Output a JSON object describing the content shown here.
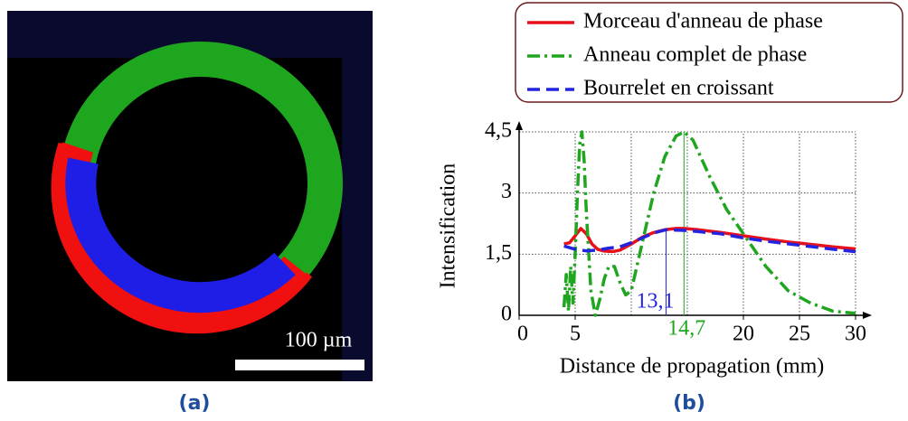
{
  "image": {
    "scale_label": "100 µm",
    "caption": "(a)"
  },
  "chart_data": {
    "type": "line",
    "caption": "(b)",
    "x_label": "Distance de propagation (mm)",
    "y_label": "Intensification",
    "xlim": [
      0,
      30
    ],
    "ylim": [
      0,
      4.5
    ],
    "xticks": [
      0,
      5,
      20,
      25,
      30
    ],
    "xgrid": [
      5,
      10,
      15,
      20,
      25,
      30
    ],
    "yticks": [
      0,
      {
        "value": 1.5,
        "label": "1,5"
      },
      3,
      {
        "value": 4.5,
        "label": "4,5"
      }
    ],
    "grid": true,
    "legend": "top-right",
    "series": [
      {
        "name": "Morceau d'anneau de phase",
        "color": "#e8101a",
        "dash": "solid",
        "x": [
          4,
          4.5,
          5,
          5.5,
          6,
          6.5,
          7,
          7.5,
          8,
          8.5,
          9,
          10,
          11,
          12,
          13,
          14,
          14.7,
          16,
          18,
          20,
          22,
          24,
          26,
          28,
          30
        ],
        "values": [
          1.75,
          1.78,
          1.95,
          2.13,
          2.0,
          1.75,
          1.62,
          1.58,
          1.57,
          1.57,
          1.6,
          1.75,
          1.92,
          2.03,
          2.1,
          2.13,
          2.13,
          2.1,
          2.03,
          1.95,
          1.87,
          1.8,
          1.74,
          1.68,
          1.63
        ]
      },
      {
        "name": "Anneau complet de phase",
        "color": "#1fa61f",
        "dash": "dashdot",
        "x": [
          4,
          4.2,
          4.4,
          4.6,
          4.8,
          5,
          5.2,
          5.4,
          5.6,
          5.8,
          6,
          6.4,
          6.8,
          7.2,
          7.6,
          8,
          8.5,
          9,
          9.5,
          10,
          11,
          12,
          13,
          14,
          14.7,
          15.5,
          17,
          18.5,
          20,
          22,
          24,
          26,
          28,
          30
        ],
        "values": [
          0.2,
          1.0,
          0.1,
          1.2,
          0.3,
          1.5,
          3.0,
          4.2,
          4.5,
          3.8,
          2.5,
          0.6,
          0.0,
          0.4,
          0.9,
          1.2,
          1.2,
          0.8,
          0.5,
          0.6,
          1.8,
          3.0,
          3.9,
          4.4,
          4.5,
          4.3,
          3.4,
          2.6,
          2.0,
          1.2,
          0.6,
          0.3,
          0.1,
          0.05
        ]
      },
      {
        "name": "Bourrelet en croissant",
        "color": "#2323e0",
        "dash": "dashed",
        "x": [
          4,
          5,
          5.5,
          6,
          7,
          8,
          9,
          10,
          11,
          12,
          13.1,
          15,
          18,
          20,
          22,
          25,
          28,
          30
        ],
        "values": [
          1.7,
          1.62,
          1.6,
          1.58,
          1.6,
          1.65,
          1.68,
          1.78,
          1.9,
          2.02,
          2.1,
          2.08,
          2.0,
          1.9,
          1.82,
          1.72,
          1.62,
          1.56
        ]
      }
    ],
    "annotations": [
      {
        "text": "13,1",
        "x": 13.1,
        "y": 2.1,
        "color": "#2323e0"
      },
      {
        "text": "14,7",
        "x": 14.7,
        "y": 4.5,
        "color": "#1fa61f"
      }
    ]
  }
}
